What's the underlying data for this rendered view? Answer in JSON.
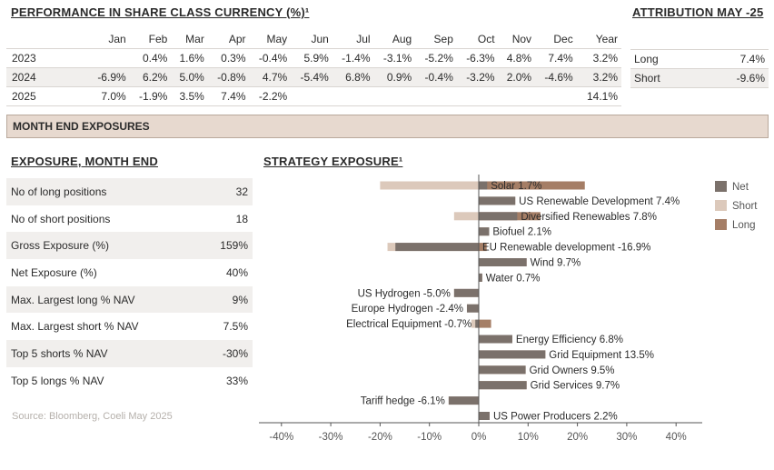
{
  "performance": {
    "title": "PERFORMANCE IN SHARE CLASS CURRENCY (%)¹",
    "headers": [
      "",
      "Jan",
      "Feb",
      "Mar",
      "Apr",
      "May",
      "Jun",
      "Jul",
      "Aug",
      "Sep",
      "Oct",
      "Nov",
      "Dec",
      "Year"
    ],
    "rows": [
      [
        "2023",
        "",
        "0.4%",
        "1.6%",
        "0.3%",
        "-0.4%",
        "5.9%",
        "-1.4%",
        "-3.1%",
        "-5.2%",
        "-6.3%",
        "4.8%",
        "7.4%",
        "3.2%"
      ],
      [
        "2024",
        "-6.9%",
        "6.2%",
        "5.0%",
        "-0.8%",
        "4.7%",
        "-5.4%",
        "6.8%",
        "0.9%",
        "-0.4%",
        "-3.2%",
        "2.0%",
        "-4.6%",
        "3.2%"
      ],
      [
        "2025",
        "7.0%",
        "-1.9%",
        "3.5%",
        "7.4%",
        "-2.2%",
        "",
        "",
        "",
        "",
        "",
        "",
        "",
        "14.1%"
      ]
    ]
  },
  "attribution": {
    "title": "ATTRIBUTION MAY -25",
    "rows": [
      {
        "label": "Long",
        "value": "7.4%"
      },
      {
        "label": "Short",
        "value": "-9.6%"
      }
    ]
  },
  "banner": "MONTH END EXPOSURES",
  "exposure": {
    "title": "EXPOSURE, MONTH END",
    "rows": [
      {
        "label": "No of long positions",
        "value": "32"
      },
      {
        "label": "No of short positions",
        "value": "18"
      },
      {
        "label": "Gross Exposure (%)",
        "value": "159%"
      },
      {
        "label": "Net Exposure (%)",
        "value": "40%"
      },
      {
        "label": "Max. Largest long % NAV",
        "value": "9%"
      },
      {
        "label": "Max. Largest short % NAV",
        "value": "7.5%"
      },
      {
        "label": "Top 5 shorts % NAV",
        "value": "-30%"
      },
      {
        "label": "Top 5 longs % NAV",
        "value": "33%"
      }
    ],
    "source": "Source: Bloomberg, Coeli May 2025"
  },
  "strategy_title": "STRATEGY EXPOSURE¹",
  "chart_data": {
    "type": "bar",
    "orientation": "horizontal",
    "xlim": [
      -45,
      45
    ],
    "xticks": [
      -40,
      -30,
      -20,
      -10,
      0,
      10,
      20,
      30,
      40
    ],
    "xtick_labels": [
      "-40%",
      "-30%",
      "-20%",
      "-10%",
      "0%",
      "10%",
      "20%",
      "30%",
      "40%"
    ],
    "legend_position": "right",
    "colors": {
      "Net": "#7b716b",
      "Short": "#dcc9bb",
      "Long": "#a57e66"
    },
    "categories": [
      "Solar",
      "US Renewable Development",
      "Diversified Renewables",
      "Biofuel",
      "EU Renewable development",
      "Wind",
      "Water",
      "US Hydrogen",
      "Europe Hydrogen",
      "Electrical Equipment",
      "Energy Efficiency",
      "Grid Equipment",
      "Grid Owners",
      "Grid Services",
      "Tariff hedge",
      "US Power Producers"
    ],
    "data_labels": [
      "Solar  1.7%",
      "US Renewable Development  7.4%",
      "Diversified Renewables  7.8%",
      "Biofuel  2.1%",
      "EU Renewable development  -16.9%",
      "Wind  9.7%",
      "Water  0.7%",
      "US Hydrogen  -5.0%",
      "Europe Hydrogen  -2.4%",
      "Electrical Equipment  -0.7%",
      "Energy Efficiency  6.8%",
      "Grid Equipment  13.5%",
      "Grid Owners  9.5%",
      "Grid Services  9.7%",
      "Tariff hedge  -6.1%",
      "US Power Producers  2.2%"
    ],
    "series": [
      {
        "name": "Net",
        "values": [
          1.7,
          7.4,
          7.8,
          2.1,
          -16.9,
          9.7,
          0.7,
          -5.0,
          -2.4,
          -0.7,
          6.8,
          13.5,
          9.5,
          9.7,
          -6.1,
          2.2
        ]
      },
      {
        "name": "Short",
        "values": [
          -20,
          0,
          -5,
          0,
          -18.5,
          0,
          0,
          -5.0,
          -2.4,
          -1.5,
          0,
          0,
          0,
          0,
          -6.1,
          0
        ]
      },
      {
        "name": "Long",
        "values": [
          21.5,
          7.4,
          12.5,
          2.1,
          1.6,
          9.7,
          0.7,
          0,
          0,
          2.5,
          6.8,
          13.5,
          9.5,
          9.7,
          0,
          2.2
        ]
      }
    ]
  }
}
